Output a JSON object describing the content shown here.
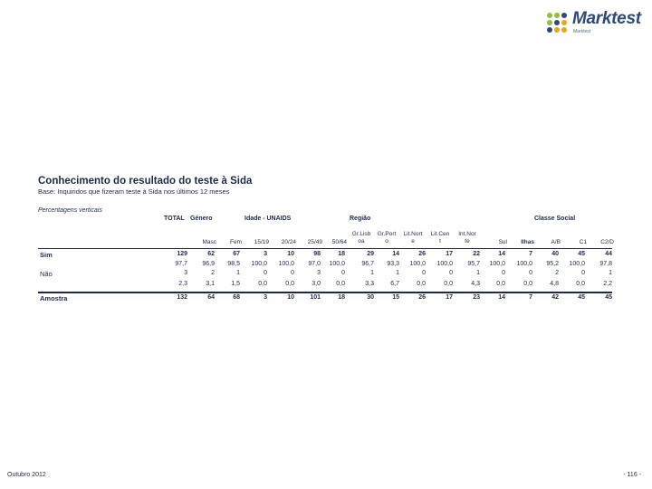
{
  "brand": {
    "name": "Marktest",
    "tagline": "Marktest",
    "dot_colors": [
      "#8fbf3b",
      "#8fbf3b",
      "#2c4a7a",
      "#8fbf3b",
      "#2c4a7a",
      "#f0a21c",
      "#2c4a7a",
      "#f0a21c",
      "#f0a21c"
    ]
  },
  "title": "Conhecimento do resultado do teste à Sida",
  "base": "Base: Inquiridos que fizeram teste à Sida nos últimos 12 meses",
  "subtitle": "Percentagens verticais",
  "groups": [
    {
      "label": "TOTAL"
    },
    {
      "label": "Género"
    },
    {
      "label": "Idade - UNAIDS"
    },
    {
      "label": "Região"
    },
    {
      "label": "Classe Social"
    }
  ],
  "columns": [
    {
      "label": "",
      "bold": false
    },
    {
      "label": "Masc",
      "bold": false
    },
    {
      "label": "Fem",
      "bold": false
    },
    {
      "label": "15/19",
      "bold": false
    },
    {
      "label": "20/24",
      "bold": false
    },
    {
      "label": "25/49",
      "bold": false
    },
    {
      "label": "50/64",
      "bold": false
    },
    {
      "label": "Gr.Lisb oa",
      "bold": false
    },
    {
      "label": "Gr.Port o",
      "bold": false
    },
    {
      "label": "Lit.Nort e",
      "bold": false
    },
    {
      "label": "Lit.Cen t",
      "bold": false
    },
    {
      "label": "Int.Nor te",
      "bold": false
    },
    {
      "label": "Sul",
      "bold": false
    },
    {
      "label": "Ilhas",
      "bold": true
    },
    {
      "label": "A/B",
      "bold": false
    },
    {
      "label": "C1",
      "bold": false
    },
    {
      "label": "C2/D",
      "bold": false
    }
  ],
  "rows": [
    {
      "label": "Sim",
      "label_bold": true,
      "counts": [
        "129",
        "62",
        "67",
        "3",
        "10",
        "98",
        "18",
        "29",
        "14",
        "26",
        "17",
        "22",
        "14",
        "7",
        "40",
        "45",
        "44"
      ],
      "percents": [
        "97,7",
        "96,9",
        "98,5",
        "100,0",
        "100,0",
        "97,0",
        "100,0",
        "96,7",
        "93,3",
        "100,0",
        "100,0",
        "95,7",
        "100,0",
        "100,0",
        "95,2",
        "100,0",
        "97,8"
      ]
    },
    {
      "label": "Não",
      "label_bold": false,
      "counts": [
        "3",
        "2",
        "1",
        "0",
        "0",
        "3",
        "0",
        "1",
        "1",
        "0",
        "0",
        "1",
        "0",
        "0",
        "2",
        "0",
        "1"
      ],
      "percents": [
        "2,3",
        "3,1",
        "1,5",
        "0,0",
        "0,0",
        "3,0",
        "0,0",
        "3,3",
        "6,7",
        "0,0",
        "0,0",
        "4,3",
        "0,0",
        "0,0",
        "4,8",
        "0,0",
        "2,2"
      ]
    }
  ],
  "sample": {
    "label": "Amostra",
    "values": [
      "132",
      "64",
      "68",
      "3",
      "10",
      "101",
      "18",
      "30",
      "15",
      "26",
      "17",
      "23",
      "14",
      "7",
      "42",
      "45",
      "45"
    ]
  },
  "footer": {
    "left": "Outubro 2012",
    "right": "- 116 -"
  }
}
